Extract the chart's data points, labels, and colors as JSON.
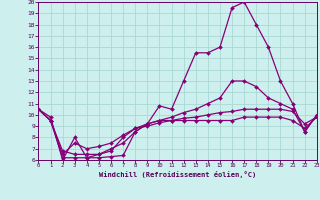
{
  "xlabel": "Windchill (Refroidissement éolien,°C)",
  "xlim": [
    0,
    23
  ],
  "ylim": [
    6,
    20
  ],
  "xticks": [
    0,
    1,
    2,
    3,
    4,
    5,
    6,
    7,
    8,
    9,
    10,
    11,
    12,
    13,
    14,
    15,
    16,
    17,
    18,
    19,
    20,
    21,
    22,
    23
  ],
  "yticks": [
    6,
    7,
    8,
    9,
    10,
    11,
    12,
    13,
    14,
    15,
    16,
    17,
    18,
    19,
    20
  ],
  "background_color": "#cdf0ee",
  "grid_color": "#aad8d4",
  "line_color": "#880077",
  "line_width": 0.9,
  "marker": "D",
  "marker_size": 2.0,
  "line1_x": [
    0,
    1,
    2,
    3,
    4,
    5,
    6,
    7,
    8,
    9,
    10,
    11,
    12,
    13,
    14,
    15,
    16,
    17,
    18,
    19,
    20,
    21,
    22,
    23
  ],
  "line1_y": [
    10.5,
    9.8,
    6.0,
    8.0,
    6.2,
    6.2,
    6.3,
    6.4,
    8.5,
    9.2,
    10.8,
    10.5,
    13.0,
    15.5,
    15.5,
    16.0,
    19.5,
    20.0,
    18.0,
    16.0,
    13.0,
    11.0,
    8.5,
    10.0
  ],
  "line2_x": [
    0,
    1,
    2,
    3,
    4,
    5,
    6,
    7,
    8,
    9,
    10,
    11,
    12,
    13,
    14,
    15,
    16,
    17,
    18,
    19,
    20,
    21,
    22,
    23
  ],
  "line2_y": [
    10.5,
    9.5,
    6.8,
    6.5,
    6.5,
    6.5,
    6.8,
    8.0,
    8.8,
    9.2,
    9.5,
    9.5,
    9.5,
    9.5,
    9.5,
    9.5,
    9.5,
    9.8,
    9.8,
    9.8,
    9.8,
    9.5,
    8.8,
    9.8
  ],
  "line3_x": [
    0,
    1,
    2,
    3,
    4,
    5,
    6,
    7,
    8,
    9,
    10,
    11,
    12,
    13,
    14,
    15,
    16,
    17,
    18,
    19,
    20,
    21,
    22,
    23
  ],
  "line3_y": [
    10.5,
    9.5,
    6.5,
    7.5,
    7.0,
    7.2,
    7.5,
    8.2,
    8.8,
    9.0,
    9.3,
    9.5,
    9.7,
    9.8,
    10.0,
    10.2,
    10.3,
    10.5,
    10.5,
    10.5,
    10.5,
    10.3,
    9.2,
    9.8
  ],
  "line4_x": [
    0,
    1,
    2,
    3,
    4,
    5,
    6,
    7,
    8,
    9,
    10,
    11,
    12,
    13,
    14,
    15,
    16,
    17,
    18,
    19,
    20,
    21,
    22,
    23
  ],
  "line4_y": [
    10.5,
    9.5,
    6.2,
    6.2,
    6.2,
    6.5,
    7.0,
    7.5,
    8.5,
    9.2,
    9.5,
    9.8,
    10.2,
    10.5,
    11.0,
    11.5,
    13.0,
    13.0,
    12.5,
    11.5,
    11.0,
    10.5,
    8.5,
    10.0
  ]
}
